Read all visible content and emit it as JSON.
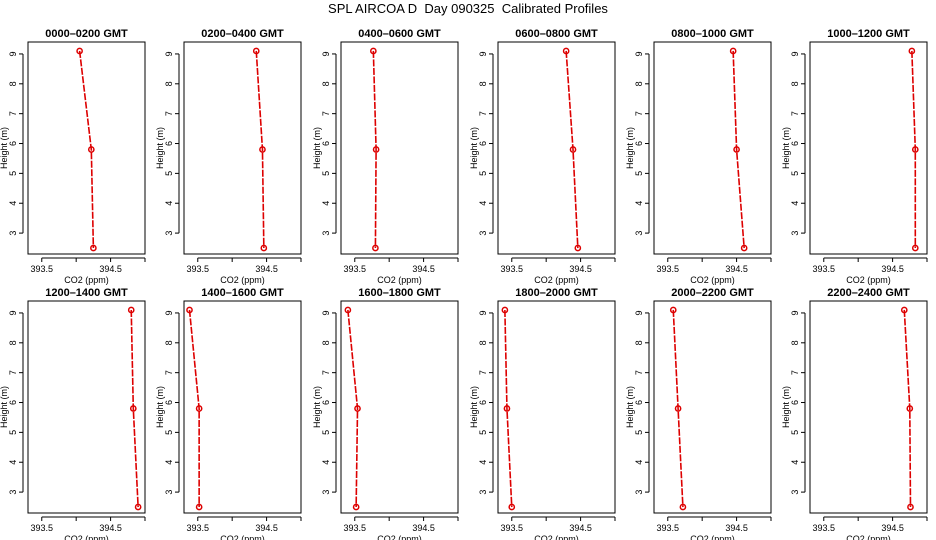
{
  "title": "SPL AIRCOA D  Day 090325  Calibrated Profiles",
  "chart_data": {
    "type": "line",
    "xlabel": "CO2 (ppm)",
    "ylabel": "Height (m)",
    "xlim": [
      393.3,
      395.0
    ],
    "ylim": [
      2.3,
      9.4
    ],
    "x_ticks": [
      393.5,
      394.0,
      394.5,
      395.0
    ],
    "x_tick_labels": [
      "393.5",
      "",
      "394.5",
      ""
    ],
    "y_ticks": [
      3,
      4,
      5,
      6,
      7,
      8,
      9
    ],
    "heights": [
      9.1,
      5.8,
      2.5
    ],
    "color": "#dd0000",
    "panels": [
      {
        "title": "0000–0200 GMT",
        "co2": [
          394.05,
          394.22,
          394.25
        ]
      },
      {
        "title": "0200–0400 GMT",
        "co2": [
          394.35,
          394.44,
          394.46
        ]
      },
      {
        "title": "0400–0600 GMT",
        "co2": [
          393.77,
          393.81,
          393.8
        ]
      },
      {
        "title": "0600–0800 GMT",
        "co2": [
          394.29,
          394.39,
          394.46
        ]
      },
      {
        "title": "0800–1000 GMT",
        "co2": [
          394.45,
          394.5,
          394.61
        ]
      },
      {
        "title": "1000–1200 GMT",
        "co2": [
          394.78,
          394.83,
          394.83
        ]
      },
      {
        "title": "1200–1400 GMT",
        "co2": [
          394.8,
          394.83,
          394.9
        ]
      },
      {
        "title": "1400–1600 GMT",
        "co2": [
          393.38,
          393.52,
          393.52
        ]
      },
      {
        "title": "1600–1800 GMT",
        "co2": [
          393.4,
          393.54,
          393.52
        ]
      },
      {
        "title": "1800–2000 GMT",
        "co2": [
          393.4,
          393.43,
          393.5
        ]
      },
      {
        "title": "2000–2200 GMT",
        "co2": [
          393.58,
          393.65,
          393.72
        ]
      },
      {
        "title": "2200–2400 GMT",
        "co2": [
          394.67,
          394.75,
          394.76
        ]
      }
    ]
  }
}
